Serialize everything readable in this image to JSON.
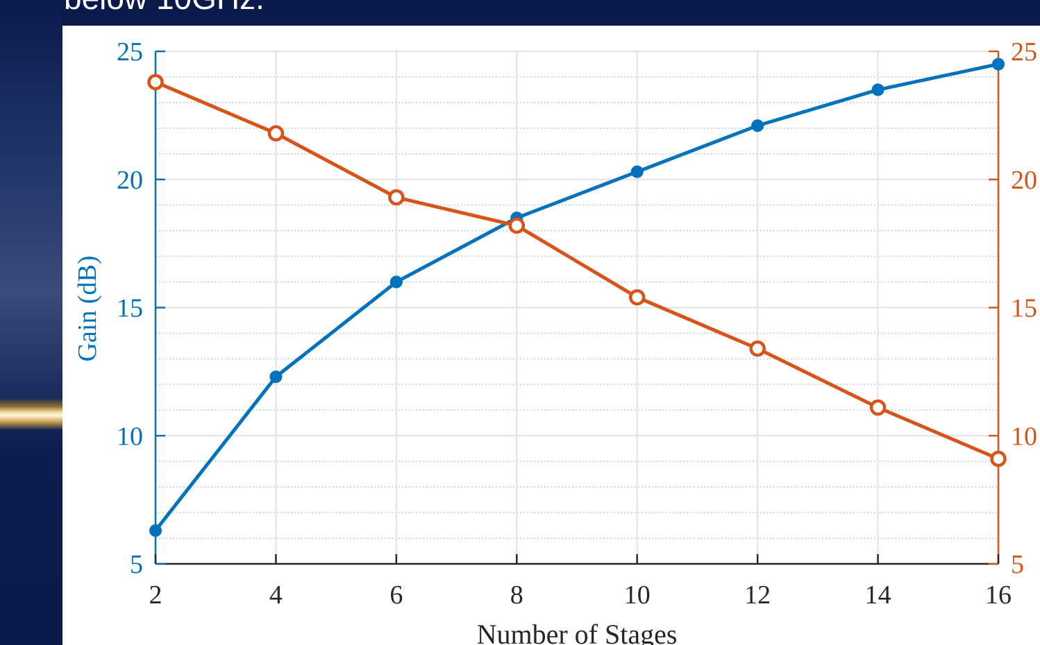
{
  "slide": {
    "heading": "below 10GHz."
  },
  "chart_data": {
    "type": "line",
    "title": "",
    "xlabel": "Number of Stages",
    "ylabel_left": "Gain (dB)",
    "ylabel_right": "",
    "x": [
      2,
      4,
      6,
      8,
      10,
      12,
      14,
      16
    ],
    "xlim": [
      2,
      16
    ],
    "ylim_left": [
      5,
      25
    ],
    "ylim_right": [
      5,
      25
    ],
    "x_ticks": [
      "2",
      "4",
      "6",
      "8",
      "10",
      "12",
      "14",
      "16"
    ],
    "y_ticks_left": [
      "5",
      "10",
      "15",
      "20",
      "25"
    ],
    "y_ticks_right": [
      "5",
      "10",
      "15",
      "20",
      "25"
    ],
    "grid": true,
    "minor_grid": true,
    "series": [
      {
        "axis": "left",
        "color": "#0072BD",
        "marker": "filled-circle",
        "values": [
          6.3,
          12.3,
          16.0,
          18.5,
          20.3,
          22.1,
          23.5,
          24.5
        ]
      },
      {
        "axis": "right",
        "color": "#D95319",
        "marker": "open-circle",
        "values": [
          23.8,
          21.8,
          19.3,
          18.2,
          15.4,
          13.4,
          11.1,
          9.1
        ]
      }
    ]
  }
}
